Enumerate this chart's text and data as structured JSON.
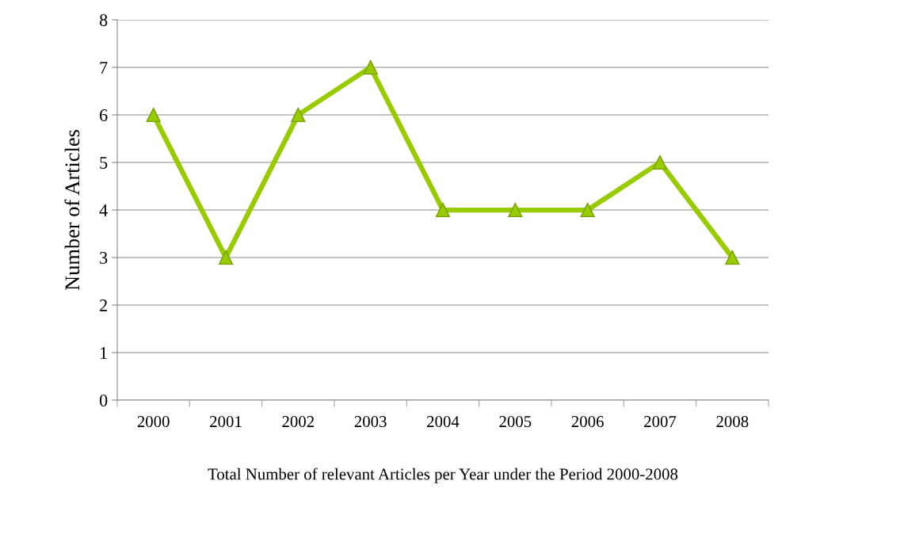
{
  "chart_data": {
    "type": "line",
    "xlabel": "Total Number of relevant Articles per Year under the Period 2000-2008",
    "ylabel": "Number of Articles",
    "categories": [
      "2000",
      "2001",
      "2002",
      "2003",
      "2004",
      "2005",
      "2006",
      "2007",
      "2008"
    ],
    "series": [
      {
        "color": "#99cc00",
        "values": [
          6,
          3,
          6,
          7,
          4,
          4,
          4,
          5,
          3
        ]
      }
    ],
    "ylim": [
      0,
      8
    ],
    "yticks": [
      0,
      1,
      2,
      3,
      4,
      5,
      6,
      7,
      8
    ],
    "grid": "y",
    "marker": "triangle",
    "line_style": "solid",
    "legend": false
  }
}
